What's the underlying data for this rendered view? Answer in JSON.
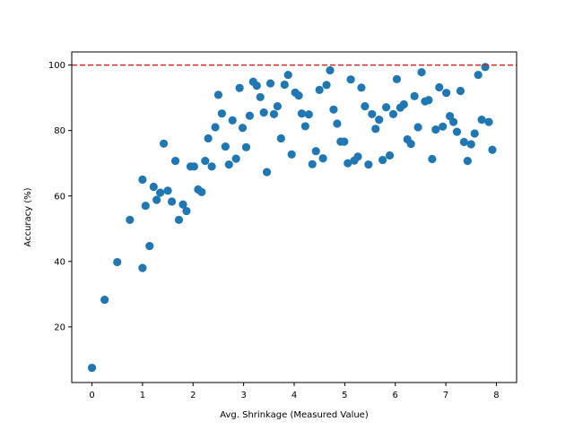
{
  "chart_data": {
    "type": "scatter",
    "title": "",
    "xlabel": "Avg. Shrinkage (Measured Value)",
    "ylabel": "Accuracy (%)",
    "xlim": [
      -0.4,
      8.4
    ],
    "ylim": [
      3,
      104
    ],
    "xticks": [
      0,
      1,
      2,
      3,
      4,
      5,
      6,
      7,
      8
    ],
    "yticks": [
      20,
      40,
      60,
      80,
      100
    ],
    "grid": false,
    "legend": "none",
    "point_color": "#1f77b4",
    "reference_line": {
      "y": 100,
      "color": "#d62728",
      "style": "dashed"
    },
    "points": [
      [
        0.0,
        7.5
      ],
      [
        0.25,
        28.3
      ],
      [
        0.5,
        39.8
      ],
      [
        0.75,
        52.7
      ],
      [
        1.0,
        38.0
      ],
      [
        1.0,
        65.0
      ],
      [
        1.06,
        57.0
      ],
      [
        1.14,
        44.7
      ],
      [
        1.22,
        62.8
      ],
      [
        1.28,
        58.8
      ],
      [
        1.35,
        61.0
      ],
      [
        1.42,
        76.0
      ],
      [
        1.5,
        61.6
      ],
      [
        1.58,
        58.3
      ],
      [
        1.65,
        70.7
      ],
      [
        1.72,
        52.7
      ],
      [
        1.8,
        57.4
      ],
      [
        1.87,
        55.4
      ],
      [
        1.95,
        69.0
      ],
      [
        2.02,
        69.0
      ],
      [
        2.1,
        62.0
      ],
      [
        2.17,
        61.2
      ],
      [
        2.24,
        70.7
      ],
      [
        2.3,
        77.6
      ],
      [
        2.37,
        69.0
      ],
      [
        2.44,
        81.0
      ],
      [
        2.5,
        90.9
      ],
      [
        2.57,
        85.2
      ],
      [
        2.64,
        75.1
      ],
      [
        2.71,
        69.6
      ],
      [
        2.78,
        83.1
      ],
      [
        2.85,
        71.4
      ],
      [
        2.92,
        93.0
      ],
      [
        2.98,
        80.8
      ],
      [
        3.05,
        74.9
      ],
      [
        3.12,
        84.5
      ],
      [
        3.19,
        94.9
      ],
      [
        3.26,
        93.7
      ],
      [
        3.33,
        90.2
      ],
      [
        3.4,
        85.5
      ],
      [
        3.46,
        67.3
      ],
      [
        3.53,
        94.4
      ],
      [
        3.6,
        85.0
      ],
      [
        3.67,
        87.4
      ],
      [
        3.74,
        77.6
      ],
      [
        3.81,
        94.0
      ],
      [
        3.88,
        97.0
      ],
      [
        3.95,
        72.7
      ],
      [
        4.02,
        91.6
      ],
      [
        4.09,
        90.7
      ],
      [
        4.15,
        85.2
      ],
      [
        4.22,
        81.3
      ],
      [
        4.29,
        84.9
      ],
      [
        4.36,
        69.7
      ],
      [
        4.43,
        73.7
      ],
      [
        4.5,
        92.4
      ],
      [
        4.57,
        71.5
      ],
      [
        4.64,
        93.9
      ],
      [
        4.71,
        98.4
      ],
      [
        4.78,
        86.4
      ],
      [
        4.85,
        82.1
      ],
      [
        4.92,
        76.6
      ],
      [
        4.99,
        76.6
      ],
      [
        5.06,
        70.0
      ],
      [
        5.12,
        95.6
      ],
      [
        5.19,
        70.8
      ],
      [
        5.26,
        72.0
      ],
      [
        5.33,
        93.1
      ],
      [
        5.4,
        87.4
      ],
      [
        5.47,
        69.6
      ],
      [
        5.54,
        85.0
      ],
      [
        5.61,
        80.5
      ],
      [
        5.68,
        83.3
      ],
      [
        5.75,
        71.0
      ],
      [
        5.82,
        87.1
      ],
      [
        5.89,
        72.4
      ],
      [
        5.96,
        85.0
      ],
      [
        6.03,
        95.7
      ],
      [
        6.1,
        87.0
      ],
      [
        6.17,
        88.0
      ],
      [
        6.24,
        77.3
      ],
      [
        6.31,
        75.9
      ],
      [
        6.38,
        90.5
      ],
      [
        6.45,
        81.0
      ],
      [
        6.52,
        97.8
      ],
      [
        6.59,
        88.9
      ],
      [
        6.66,
        89.3
      ],
      [
        6.73,
        71.3
      ],
      [
        6.8,
        80.3
      ],
      [
        6.87,
        93.2
      ],
      [
        6.94,
        81.2
      ],
      [
        7.01,
        91.5
      ],
      [
        7.08,
        84.4
      ],
      [
        7.15,
        82.6
      ],
      [
        7.22,
        79.6
      ],
      [
        7.29,
        92.1
      ],
      [
        7.36,
        76.5
      ],
      [
        7.43,
        70.7
      ],
      [
        7.5,
        75.8
      ],
      [
        7.57,
        79.1
      ],
      [
        7.64,
        97.0
      ],
      [
        7.71,
        83.3
      ],
      [
        7.78,
        99.4
      ],
      [
        7.85,
        82.6
      ],
      [
        7.92,
        74.1
      ]
    ]
  }
}
